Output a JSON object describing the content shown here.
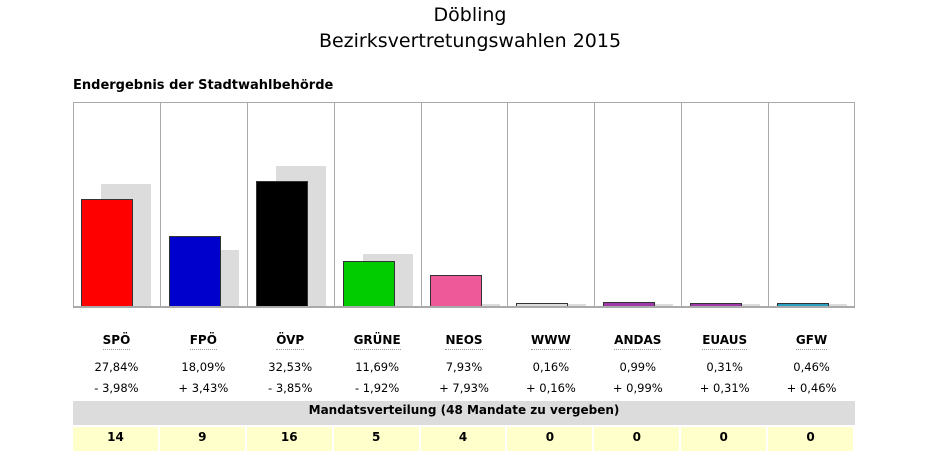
{
  "chart_data": {
    "type": "bar",
    "title": "Döbling",
    "subtitle": "Bezirksvertretungswahlen 2015",
    "caption": "Endergebnis der Stadtwahlbehörde",
    "categories": [
      "SPÖ",
      "FPÖ",
      "ÖVP",
      "GRÜNE",
      "NEOS",
      "WWW",
      "ANDAS",
      "EUAUS",
      "GFW"
    ],
    "colors": [
      "#ff0000",
      "#0000cc",
      "#000000",
      "#00cc00",
      "#ee5a99",
      "#dddddd",
      "#a03aa8",
      "#a03aa8",
      "#2a9fc0"
    ],
    "series": [
      {
        "values": [
          27.84,
          18.09,
          32.53,
          11.69,
          7.93,
          0.16,
          0.99,
          0.31,
          0.46
        ]
      },
      {
        "values": [
          31.82,
          14.66,
          36.38,
          13.61,
          0,
          0,
          0,
          0,
          0
        ]
      }
    ],
    "pct_labels": [
      "27,84%",
      "18,09%",
      "32,53%",
      "11,69%",
      "7,93%",
      "0,16%",
      "0,99%",
      "0,31%",
      "0,46%"
    ],
    "diff_labels": [
      "- 3,98%",
      "+ 3,43%",
      "- 3,85%",
      "- 1,92%",
      "+ 7,93%",
      "+ 0,16%",
      "+ 0,99%",
      "+ 0,31%",
      "+ 0,46%"
    ],
    "mandate_title": "Mandatsverteilung (48 Mandate zu vergeben)",
    "seats": [
      "14",
      "9",
      "16",
      "5",
      "4",
      "0",
      "0",
      "0",
      "0"
    ],
    "ylim": [
      0,
      53
    ],
    "grid": false
  }
}
